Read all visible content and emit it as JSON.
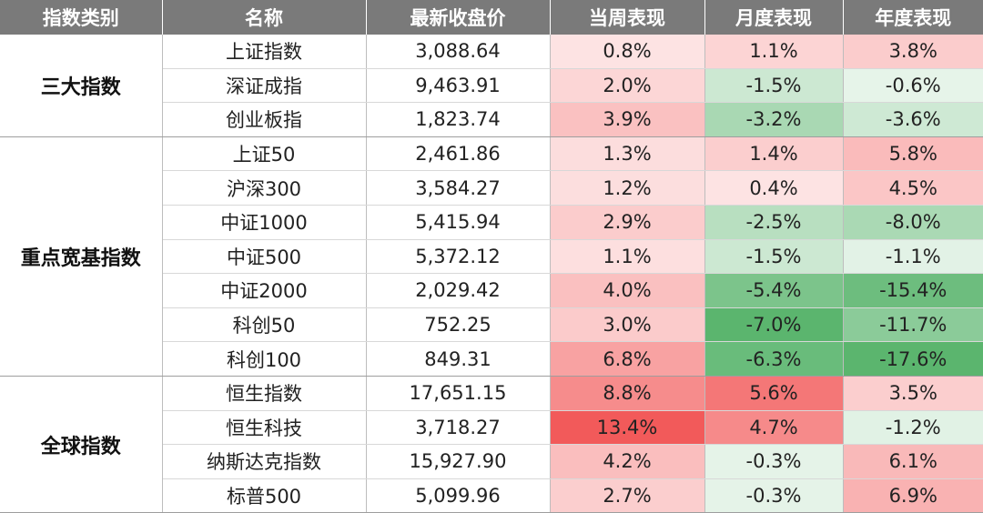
{
  "chart_data": {
    "type": "table",
    "columns": [
      "指数类别",
      "名称",
      "最新收盘价",
      "当周表现",
      "月度表现",
      "年度表现"
    ],
    "groups": [
      {
        "category": "三大指数",
        "rows": [
          {
            "name": "上证指数",
            "close": "3,088.64",
            "week": "0.8%",
            "month": "1.1%",
            "year": "3.8%"
          },
          {
            "name": "深证成指",
            "close": "9,463.91",
            "week": "2.0%",
            "month": "-1.5%",
            "year": "-0.6%"
          },
          {
            "name": "创业板指",
            "close": "1,823.74",
            "week": "3.9%",
            "month": "-3.2%",
            "year": "-3.6%"
          }
        ]
      },
      {
        "category": "重点宽基指数",
        "rows": [
          {
            "name": "上证50",
            "close": "2,461.86",
            "week": "1.3%",
            "month": "1.4%",
            "year": "5.8%"
          },
          {
            "name": "沪深300",
            "close": "3,584.27",
            "week": "1.2%",
            "month": "0.4%",
            "year": "4.5%"
          },
          {
            "name": "中证1000",
            "close": "5,415.94",
            "week": "2.9%",
            "month": "-2.5%",
            "year": "-8.0%"
          },
          {
            "name": "中证500",
            "close": "5,372.12",
            "week": "1.1%",
            "month": "-1.5%",
            "year": "-1.1%"
          },
          {
            "name": "中证2000",
            "close": "2,029.42",
            "week": "4.0%",
            "month": "-5.4%",
            "year": "-15.4%"
          },
          {
            "name": "科创50",
            "close": "752.25",
            "week": "3.0%",
            "month": "-7.0%",
            "year": "-11.7%"
          },
          {
            "name": "科创100",
            "close": "849.31",
            "week": "6.8%",
            "month": "-6.3%",
            "year": "-17.6%"
          }
        ]
      },
      {
        "category": "全球指数",
        "rows": [
          {
            "name": "恒生指数",
            "close": "17,651.15",
            "week": "8.8%",
            "month": "5.6%",
            "year": "3.5%"
          },
          {
            "name": "恒生科技",
            "close": "3,718.27",
            "week": "13.4%",
            "month": "4.7%",
            "year": "-1.2%"
          },
          {
            "name": "纳斯达克指数",
            "close": "15,927.90",
            "week": "4.2%",
            "month": "-0.3%",
            "year": "6.1%"
          },
          {
            "name": "标普500",
            "close": "5,099.96",
            "week": "2.7%",
            "month": "-0.3%",
            "year": "6.9%"
          }
        ]
      }
    ],
    "heatmap_colors": {
      "positive": "#f25a5a",
      "negative": "#5bb56e",
      "neutral": "#ffffff"
    }
  }
}
